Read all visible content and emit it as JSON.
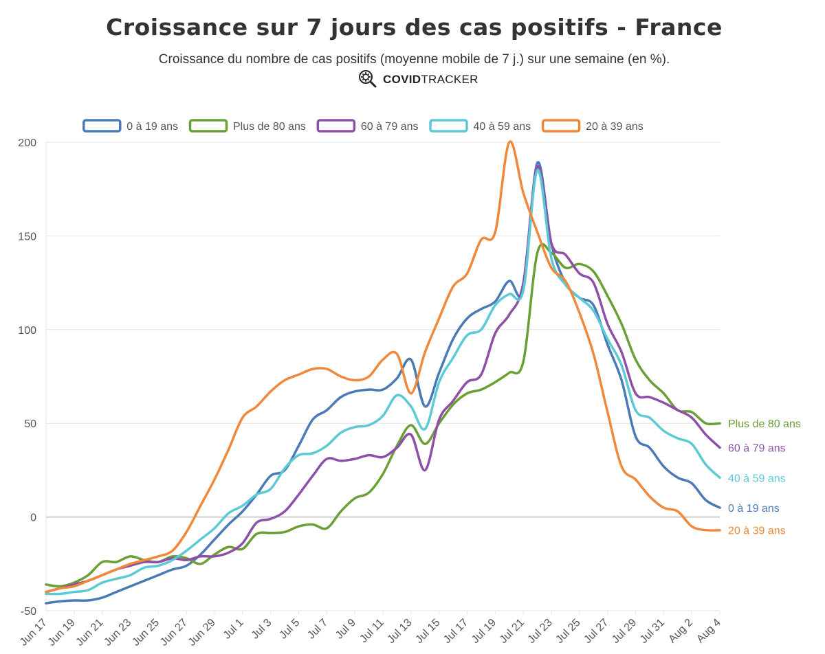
{
  "header": {
    "title": "Croissance sur 7 jours des cas positifs - France",
    "subtitle": "Croissance du nombre de cas positifs (moyenne mobile de 7 j.) sur une semaine (en %).",
    "brand_bold": "COVID",
    "brand_rest": "TRACKER",
    "brand_icon": "virus-magnifier-icon"
  },
  "chart_data": {
    "type": "line",
    "title": "Croissance sur 7 jours des cas positifs - France",
    "xlabel": "",
    "ylabel": "",
    "ylim": [
      -50,
      200
    ],
    "yticks": [
      -50,
      0,
      50,
      100,
      150,
      200
    ],
    "grid": true,
    "legend_position": "top",
    "x_tick_labels": [
      "Jun 17",
      "Jun 19",
      "Jun 21",
      "Jun 23",
      "Jun 25",
      "Jun 27",
      "Jun 29",
      "Jul 1",
      "Jul 3",
      "Jul 5",
      "Jul 7",
      "Jul 9",
      "Jul 11",
      "Jul 13",
      "Jul 15",
      "Jul 17",
      "Jul 19",
      "Jul 21",
      "Jul 23",
      "Jul 25",
      "Jul 27",
      "Jul 29",
      "Jul 31",
      "Aug 2",
      "Aug 4"
    ],
    "x_days": 48,
    "series": [
      {
        "name": "0 à 19 ans",
        "end_label": "0 à 19 ans",
        "color": "#4a7ab6",
        "points": [
          [
            0,
            -46
          ],
          [
            1,
            -45
          ],
          [
            2,
            -44.5
          ],
          [
            3,
            -44.5
          ],
          [
            4,
            -43
          ],
          [
            5,
            -40
          ],
          [
            6,
            -37
          ],
          [
            7,
            -34
          ],
          [
            8,
            -31
          ],
          [
            9,
            -28
          ],
          [
            10,
            -26
          ],
          [
            11,
            -20
          ],
          [
            12,
            -12
          ],
          [
            13,
            -4
          ],
          [
            14,
            3
          ],
          [
            15,
            12
          ],
          [
            16,
            22
          ],
          [
            17,
            25
          ],
          [
            18,
            38
          ],
          [
            19,
            52
          ],
          [
            20,
            57
          ],
          [
            21,
            64
          ],
          [
            22,
            67
          ],
          [
            23,
            68
          ],
          [
            24,
            68
          ],
          [
            25,
            74
          ],
          [
            26,
            84
          ],
          [
            27,
            59
          ],
          [
            28,
            77
          ],
          [
            29,
            95
          ],
          [
            30,
            106
          ],
          [
            31,
            111
          ],
          [
            32,
            115
          ],
          [
            33,
            126
          ],
          [
            34,
            121
          ],
          [
            35,
            189
          ],
          [
            36,
            146
          ],
          [
            37,
            125
          ],
          [
            38,
            117
          ],
          [
            39,
            113
          ],
          [
            40,
            92
          ],
          [
            41,
            73
          ],
          [
            42,
            43
          ],
          [
            43,
            37
          ],
          [
            44,
            27
          ],
          [
            45,
            21
          ],
          [
            46,
            18
          ],
          [
            47,
            9
          ],
          [
            48,
            5
          ]
        ]
      },
      {
        "name": "Plus de 80 ans",
        "end_label": "Plus de 80 ans",
        "color": "#6a9f35",
        "points": [
          [
            0,
            -36
          ],
          [
            1,
            -37
          ],
          [
            2,
            -35
          ],
          [
            3,
            -31
          ],
          [
            4,
            -24
          ],
          [
            5,
            -24
          ],
          [
            6,
            -21
          ],
          [
            7,
            -23
          ],
          [
            8,
            -24
          ],
          [
            9,
            -21
          ],
          [
            10,
            -22
          ],
          [
            11,
            -25
          ],
          [
            12,
            -20
          ],
          [
            13,
            -16
          ],
          [
            14,
            -17
          ],
          [
            15,
            -9
          ],
          [
            16,
            -8.5
          ],
          [
            17,
            -8
          ],
          [
            18,
            -5
          ],
          [
            19,
            -4
          ],
          [
            20,
            -6
          ],
          [
            21,
            3
          ],
          [
            22,
            10
          ],
          [
            23,
            13
          ],
          [
            24,
            23
          ],
          [
            25,
            38
          ],
          [
            26,
            49
          ],
          [
            27,
            39
          ],
          [
            28,
            50
          ],
          [
            29,
            60
          ],
          [
            30,
            66
          ],
          [
            31,
            68
          ],
          [
            32,
            72
          ],
          [
            33,
            77
          ],
          [
            34,
            83
          ],
          [
            35,
            141
          ],
          [
            36,
            141
          ],
          [
            37,
            133
          ],
          [
            38,
            135
          ],
          [
            39,
            131
          ],
          [
            40,
            118
          ],
          [
            41,
            103
          ],
          [
            42,
            84
          ],
          [
            43,
            73
          ],
          [
            44,
            66
          ],
          [
            45,
            57
          ],
          [
            46,
            56
          ],
          [
            47,
            50
          ],
          [
            48,
            50
          ]
        ]
      },
      {
        "name": "60 à 79 ans",
        "end_label": "60 à 79 ans",
        "color": "#8e4fa8",
        "points": [
          [
            0,
            -40
          ],
          [
            1,
            -38
          ],
          [
            2,
            -36
          ],
          [
            3,
            -34
          ],
          [
            4,
            -31
          ],
          [
            5,
            -28
          ],
          [
            6,
            -26
          ],
          [
            7,
            -24
          ],
          [
            8,
            -24
          ],
          [
            9,
            -22
          ],
          [
            10,
            -23
          ],
          [
            11,
            -21
          ],
          [
            12,
            -21
          ],
          [
            13,
            -19
          ],
          [
            14,
            -14
          ],
          [
            15,
            -3
          ],
          [
            16,
            -1
          ],
          [
            17,
            3
          ],
          [
            18,
            12
          ],
          [
            19,
            22
          ],
          [
            20,
            31
          ],
          [
            21,
            30
          ],
          [
            22,
            31
          ],
          [
            23,
            33
          ],
          [
            24,
            32
          ],
          [
            25,
            37
          ],
          [
            26,
            44
          ],
          [
            27,
            25
          ],
          [
            28,
            52
          ],
          [
            29,
            62
          ],
          [
            30,
            72
          ],
          [
            31,
            76
          ],
          [
            32,
            98
          ],
          [
            33,
            108
          ],
          [
            34,
            125
          ],
          [
            35,
            187
          ],
          [
            36,
            146
          ],
          [
            37,
            140
          ],
          [
            38,
            130
          ],
          [
            39,
            125
          ],
          [
            40,
            103
          ],
          [
            41,
            88
          ],
          [
            42,
            66
          ],
          [
            43,
            64
          ],
          [
            44,
            61
          ],
          [
            45,
            57
          ],
          [
            46,
            53
          ],
          [
            47,
            44
          ],
          [
            48,
            37
          ]
        ]
      },
      {
        "name": "40 à 59 ans",
        "end_label": "40 à 59 ans",
        "color": "#5cc9d6",
        "points": [
          [
            0,
            -41
          ],
          [
            1,
            -41
          ],
          [
            2,
            -40
          ],
          [
            3,
            -39
          ],
          [
            4,
            -35
          ],
          [
            5,
            -33
          ],
          [
            6,
            -31
          ],
          [
            7,
            -27
          ],
          [
            8,
            -26
          ],
          [
            9,
            -23
          ],
          [
            10,
            -18
          ],
          [
            11,
            -12
          ],
          [
            12,
            -6
          ],
          [
            13,
            2
          ],
          [
            14,
            6
          ],
          [
            15,
            12
          ],
          [
            16,
            15
          ],
          [
            17,
            26
          ],
          [
            18,
            33
          ],
          [
            19,
            34
          ],
          [
            20,
            38
          ],
          [
            21,
            45
          ],
          [
            22,
            48
          ],
          [
            23,
            49
          ],
          [
            24,
            54
          ],
          [
            25,
            65
          ],
          [
            26,
            59
          ],
          [
            27,
            47
          ],
          [
            28,
            72
          ],
          [
            29,
            85
          ],
          [
            30,
            97
          ],
          [
            31,
            100
          ],
          [
            32,
            113
          ],
          [
            33,
            119
          ],
          [
            34,
            121
          ],
          [
            35,
            185
          ],
          [
            36,
            138
          ],
          [
            37,
            124
          ],
          [
            38,
            117
          ],
          [
            39,
            110
          ],
          [
            40,
            95
          ],
          [
            41,
            81
          ],
          [
            42,
            57
          ],
          [
            43,
            53
          ],
          [
            44,
            46
          ],
          [
            45,
            42
          ],
          [
            46,
            39
          ],
          [
            47,
            28
          ],
          [
            48,
            21
          ]
        ]
      },
      {
        "name": "20 à 39 ans",
        "end_label": "20 à 39 ans",
        "color": "#f0883c",
        "points": [
          [
            0,
            -40
          ],
          [
            1,
            -38
          ],
          [
            2,
            -37
          ],
          [
            3,
            -34
          ],
          [
            4,
            -31
          ],
          [
            5,
            -28
          ],
          [
            6,
            -25
          ],
          [
            7,
            -23
          ],
          [
            8,
            -21
          ],
          [
            9,
            -18
          ],
          [
            10,
            -8
          ],
          [
            11,
            6
          ],
          [
            12,
            20
          ],
          [
            13,
            36
          ],
          [
            14,
            53
          ],
          [
            15,
            59
          ],
          [
            16,
            67
          ],
          [
            17,
            73
          ],
          [
            18,
            76
          ],
          [
            19,
            79
          ],
          [
            20,
            79
          ],
          [
            21,
            75
          ],
          [
            22,
            73
          ],
          [
            23,
            75
          ],
          [
            24,
            84
          ],
          [
            25,
            87
          ],
          [
            26,
            66
          ],
          [
            27,
            88
          ],
          [
            28,
            106
          ],
          [
            29,
            123
          ],
          [
            30,
            130
          ],
          [
            31,
            148
          ],
          [
            32,
            152
          ],
          [
            33,
            200
          ],
          [
            34,
            173
          ],
          [
            35,
            152
          ],
          [
            36,
            133
          ],
          [
            37,
            126
          ],
          [
            38,
            109
          ],
          [
            39,
            87
          ],
          [
            40,
            56
          ],
          [
            41,
            27
          ],
          [
            42,
            20
          ],
          [
            43,
            11
          ],
          [
            44,
            5
          ],
          [
            45,
            3
          ],
          [
            46,
            -5
          ],
          [
            47,
            -7
          ],
          [
            48,
            -7
          ]
        ]
      }
    ]
  }
}
